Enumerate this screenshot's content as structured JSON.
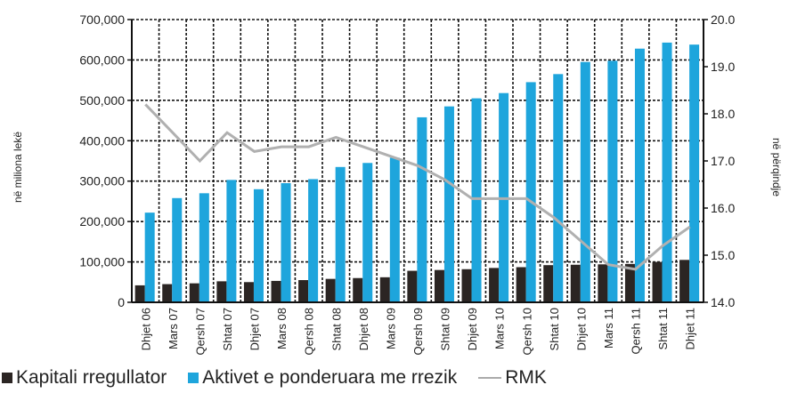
{
  "chart_data": {
    "type": "bar",
    "title": "",
    "xlabel": "",
    "ylabel": "në miliona lekë",
    "y2label": "në përqindje",
    "categories": [
      "Dhjet 06",
      "Mars 07",
      "Qersh 07",
      "Shtat 07",
      "Dhjet 07",
      "Mars 08",
      "Qersh 08",
      "Shtat 08",
      "Dhjet 08",
      "Mars 09",
      "Qersh 09",
      "Shtat 09",
      "Dhjet 09",
      "Mars 10",
      "Qersh 10",
      "Shtat 10",
      "Dhjet 10",
      "Mars 11",
      "Qersh 11",
      "Shtat 11",
      "Dhjet 11"
    ],
    "ylim": [
      0,
      700000
    ],
    "y2lim": [
      14.0,
      20.0
    ],
    "yticks": [
      "0",
      "100,000",
      "200,000",
      "300,000",
      "400,000",
      "500,000",
      "600,000",
      "700,000"
    ],
    "y2ticks": [
      "14.0",
      "15.0",
      "16.0",
      "17.0",
      "18.0",
      "19.0",
      "20.0"
    ],
    "grid": true,
    "legend_position": "bottom",
    "series": [
      {
        "name": "Kapitali rregullator",
        "kind": "bar",
        "axis": "left",
        "color": "#2b2523",
        "values": [
          42000,
          45000,
          47000,
          52000,
          50000,
          53000,
          55000,
          58000,
          60000,
          62000,
          78000,
          80000,
          82000,
          85000,
          87000,
          92000,
          93000,
          94000,
          95000,
          100000,
          105000
        ]
      },
      {
        "name": "Aktivet e ponderuara me rrezik",
        "kind": "bar",
        "axis": "left",
        "color": "#1ea5dc",
        "values": [
          222000,
          258000,
          270000,
          303000,
          280000,
          295000,
          305000,
          335000,
          345000,
          358000,
          458000,
          485000,
          505000,
          518000,
          545000,
          565000,
          595000,
          598000,
          628000,
          643000,
          638000
        ]
      },
      {
        "name": "RMK",
        "kind": "line",
        "axis": "right",
        "color": "#b0b0b0",
        "values": [
          18.2,
          17.6,
          17.0,
          17.6,
          17.2,
          17.3,
          17.3,
          17.5,
          17.3,
          17.1,
          16.9,
          16.6,
          16.2,
          16.2,
          16.2,
          15.8,
          15.3,
          14.8,
          14.7,
          15.2,
          15.6
        ]
      }
    ]
  }
}
